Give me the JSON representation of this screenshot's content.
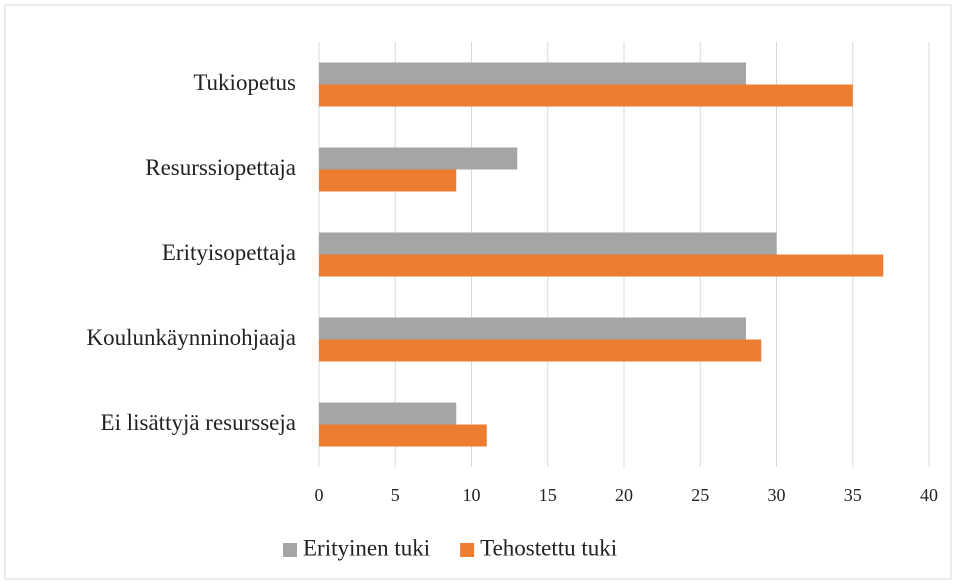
{
  "chart_data": {
    "type": "bar",
    "orientation": "horizontal",
    "categories": [
      "Tukiopetus",
      "Resurssiopettaja",
      "Erityisopettaja",
      "Koulunkäynninohjaaja",
      "Ei lisättyjä resursseja"
    ],
    "series": [
      {
        "name": "Erityinen tuki",
        "color": "#a5a5a5",
        "values": [
          28,
          13,
          30,
          28,
          9
        ]
      },
      {
        "name": "Tehostettu tuki",
        "color": "#ed7d31",
        "values": [
          35,
          9,
          37,
          29,
          11
        ]
      }
    ],
    "xlim": [
      0,
      40
    ],
    "xticks": [
      0,
      5,
      10,
      15,
      20,
      25,
      30,
      35,
      40
    ],
    "grid": true,
    "legend": "bottom"
  }
}
